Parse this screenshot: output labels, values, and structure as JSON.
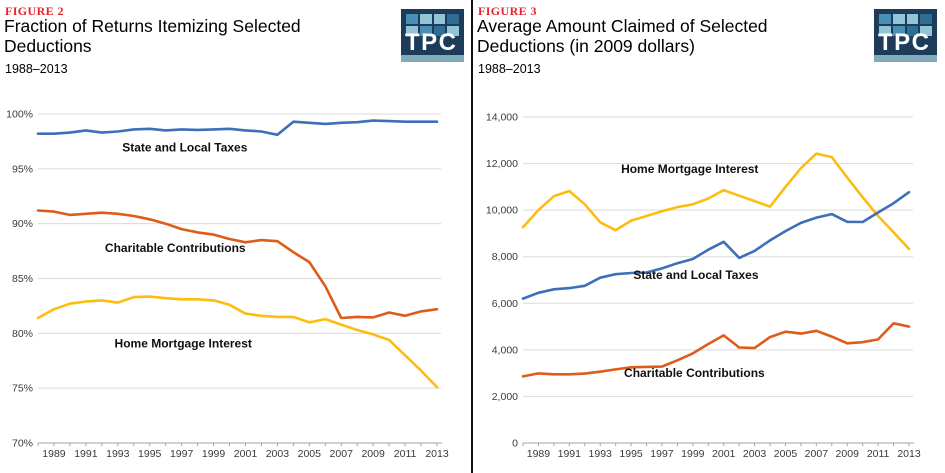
{
  "logo": {
    "text": "TPC",
    "navy": "#1d3c59",
    "strip": "#82aabf",
    "text_color": "#ffffff",
    "squares": [
      "#4a8fb4",
      "#93c5d8",
      "#93c5d8",
      "#2e6d94",
      "#93c5d8",
      "#4a8fb4",
      "#2e6d94",
      "#93c5d8"
    ]
  },
  "panels": [
    {
      "figure_label": "FIGURE 2",
      "title": "Fraction of Returns Itemizing Selected Deductions",
      "subtitle": "1988–2013"
    },
    {
      "figure_label": "FIGURE 3",
      "title": "Average Amount Claimed of Selected Deductions (in 2009 dollars)",
      "subtitle": "1988–2013"
    }
  ],
  "chart_data": [
    {
      "type": "line",
      "title": "Fraction of Returns Itemizing Selected Deductions",
      "subtitle": "1988–2013",
      "xlabel": "",
      "ylabel": "",
      "grid": true,
      "legend_position": "inline-labels",
      "x": [
        1988,
        1989,
        1990,
        1991,
        1992,
        1993,
        1994,
        1995,
        1996,
        1997,
        1998,
        1999,
        2000,
        2001,
        2002,
        2003,
        2004,
        2005,
        2006,
        2007,
        2008,
        2009,
        2010,
        2011,
        2012,
        2013
      ],
      "x_tick_labels": [
        1989,
        1991,
        1993,
        1995,
        1997,
        1999,
        2001,
        2003,
        2005,
        2007,
        2009,
        2011,
        2013
      ],
      "ylim": [
        70,
        100
      ],
      "y_ticks": [
        {
          "value": 100,
          "label": "100%"
        },
        {
          "value": 95,
          "label": "95%"
        },
        {
          "value": 90,
          "label": "90%"
        },
        {
          "value": 85,
          "label": "85%"
        },
        {
          "value": 80,
          "label": "80%"
        },
        {
          "value": 75,
          "label": "75%"
        },
        {
          "value": 70,
          "label": "70%"
        }
      ],
      "series": [
        {
          "name": "State and Local Taxes",
          "color": "#3e6fb8",
          "values": [
            98.2,
            98.2,
            98.3,
            98.5,
            98.3,
            98.4,
            98.6,
            98.65,
            98.5,
            98.6,
            98.55,
            98.6,
            98.65,
            98.5,
            98.4,
            98.1,
            99.3,
            99.2,
            99.1,
            99.2,
            99.25,
            99.4,
            99.35,
            99.3,
            99.3,
            99.3
          ]
        },
        {
          "name": "Charitable Contributions",
          "color": "#dd5c1a",
          "values": [
            91.2,
            91.1,
            90.8,
            90.9,
            91.0,
            90.9,
            90.7,
            90.4,
            90.0,
            89.5,
            89.2,
            89.0,
            88.6,
            88.3,
            88.5,
            88.4,
            87.4,
            86.5,
            84.3,
            81.4,
            81.5,
            81.45,
            81.9,
            81.6,
            82.0,
            82.2
          ]
        },
        {
          "name": "Home Mortgage Interest",
          "color": "#fdbd10",
          "values": [
            81.4,
            82.2,
            82.7,
            82.9,
            83.0,
            82.8,
            83.3,
            83.35,
            83.2,
            83.1,
            83.1,
            83.0,
            82.6,
            81.8,
            81.6,
            81.5,
            81.5,
            81.0,
            81.3,
            80.8,
            80.3,
            79.9,
            79.4,
            78.0,
            76.6,
            75.1
          ]
        }
      ],
      "annotations": [
        {
          "text": "State and Local Taxes",
          "year": 1997.2,
          "value": 96.6
        },
        {
          "text": "Charitable Contributions",
          "year": 1996.6,
          "value": 87.4
        },
        {
          "text": "Home Mortgage Interest",
          "year": 1997.1,
          "value": 78.7
        }
      ]
    },
    {
      "type": "line",
      "title": "Average Amount Claimed of Selected Deductions (in 2009 dollars)",
      "subtitle": "1988–2013",
      "xlabel": "",
      "ylabel": "",
      "grid": true,
      "legend_position": "inline-labels",
      "x": [
        1988,
        1989,
        1990,
        1991,
        1992,
        1993,
        1994,
        1995,
        1996,
        1997,
        1998,
        1999,
        2000,
        2001,
        2002,
        2003,
        2004,
        2005,
        2006,
        2007,
        2008,
        2009,
        2010,
        2011,
        2012,
        2013
      ],
      "x_tick_labels": [
        1989,
        1991,
        1993,
        1995,
        1997,
        1999,
        2001,
        2003,
        2005,
        2007,
        2009,
        2011,
        2013
      ],
      "ylim": [
        0,
        14000
      ],
      "y_ticks": [
        {
          "value": 14000,
          "label": "14,000"
        },
        {
          "value": 12000,
          "label": "12,000"
        },
        {
          "value": 10000,
          "label": "10,000"
        },
        {
          "value": 8000,
          "label": "8,000"
        },
        {
          "value": 6000,
          "label": "6,000"
        },
        {
          "value": 4000,
          "label": "4,000"
        },
        {
          "value": 2000,
          "label": "2,000"
        },
        {
          "value": 0,
          "label": "0"
        }
      ],
      "series": [
        {
          "name": "Home Mortgage Interest",
          "color": "#fdbd10",
          "values": [
            9270,
            10000,
            10600,
            10820,
            10250,
            9480,
            9140,
            9550,
            9750,
            9950,
            10130,
            10250,
            10500,
            10860,
            10620,
            10390,
            10150,
            11000,
            11800,
            12430,
            12280,
            11400,
            10550,
            9750,
            9050,
            8330
          ]
        },
        {
          "name": "State and Local Taxes",
          "color": "#3e6fb8",
          "values": [
            6200,
            6450,
            6600,
            6650,
            6750,
            7100,
            7250,
            7300,
            7320,
            7500,
            7720,
            7900,
            8300,
            8640,
            7950,
            8250,
            8700,
            9100,
            9450,
            9680,
            9830,
            9500,
            9490,
            9900,
            10300,
            10770
          ]
        },
        {
          "name": "Charitable Contributions",
          "color": "#dd5c1a",
          "values": [
            2860,
            2990,
            2950,
            2950,
            2980,
            3060,
            3160,
            3250,
            3270,
            3280,
            3550,
            3850,
            4250,
            4620,
            4100,
            4080,
            4550,
            4780,
            4700,
            4820,
            4570,
            4280,
            4330,
            4450,
            5140,
            5000
          ]
        }
      ],
      "annotations": [
        {
          "text": "Home Mortgage Interest",
          "year": 1998.8,
          "value": 11600
        },
        {
          "text": "State and Local Taxes",
          "year": 1999.2,
          "value": 7050
        },
        {
          "text": "Charitable Contributions",
          "year": 1999.1,
          "value": 2840
        }
      ]
    }
  ]
}
